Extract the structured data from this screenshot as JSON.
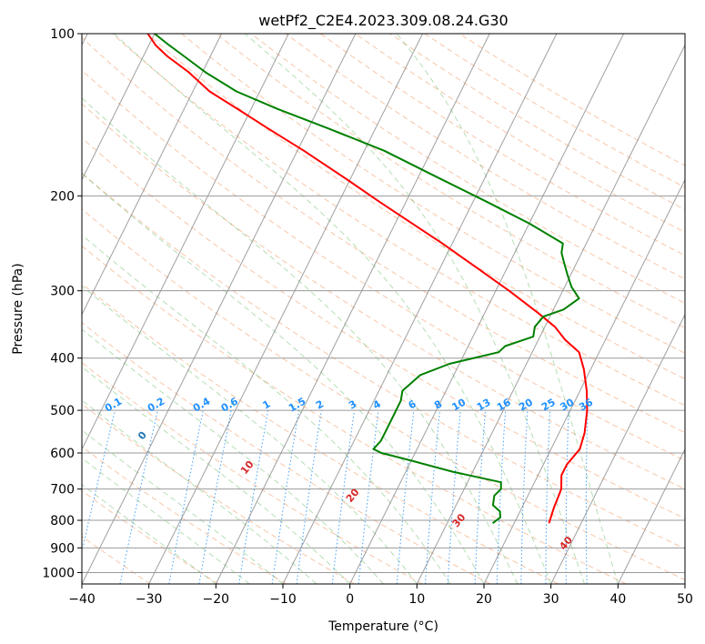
{
  "chart_data": {
    "type": "line",
    "title": "wetPf2_C2E4.2023.309.08.24.G30",
    "xlabel": "Temperature (°C)",
    "ylabel": "Pressure (hPa)",
    "xlim": [
      -40,
      50
    ],
    "ylim": [
      1050,
      100
    ],
    "yscale": "log",
    "x_ticks": [
      "-40",
      "-30",
      "-20",
      "-10",
      "0",
      "10",
      "20",
      "30",
      "40",
      "50"
    ],
    "y_ticks": [
      "100",
      "200",
      "300",
      "400",
      "500",
      "600",
      "700",
      "800",
      "900",
      "1000"
    ],
    "grid": true,
    "series": [
      {
        "color": "#ff0000",
        "pressure": [
          810,
          760,
          700,
          660,
          630,
          590,
          550,
          500,
          460,
          420,
          390,
          370,
          350,
          330,
          300,
          270,
          245,
          225,
          205,
          185,
          165,
          150,
          138,
          128,
          118,
          110,
          105,
          100
        ],
        "temperature": [
          25.2,
          24.8,
          24.5,
          23.5,
          23.5,
          24.3,
          23.8,
          22.5,
          21.0,
          19.0,
          17.0,
          14.0,
          11.5,
          8.0,
          2.0,
          -5.0,
          -11.5,
          -17.5,
          -24.0,
          -31.0,
          -39.0,
          -46.0,
          -52.0,
          -57.5,
          -62.0,
          -66.5,
          -69.0,
          -71.0
        ]
      },
      {
        "color": "#008000",
        "pressure": [
          810,
          790,
          770,
          750,
          720,
          700,
          680,
          650,
          620,
          600,
          590,
          570,
          540,
          510,
          480,
          460,
          430,
          410,
          390,
          380,
          365,
          350,
          335,
          325,
          310,
          295,
          280,
          265,
          255,
          245,
          225,
          205,
          185,
          165,
          150,
          138,
          128,
          118,
          110,
          105,
          100
        ],
        "temperature": [
          16.8,
          17.5,
          17.0,
          15.5,
          15.0,
          15.5,
          15.0,
          7.0,
          0.0,
          -5.0,
          -6.5,
          -6.0,
          -6.0,
          -6.0,
          -6.0,
          -6.5,
          -5.0,
          -1.5,
          5.0,
          5.5,
          9.0,
          8.5,
          9.0,
          11.5,
          13.0,
          11.0,
          9.5,
          8.0,
          7.0,
          6.5,
          0.0,
          -8.0,
          -17.0,
          -27.0,
          -37.0,
          -46.0,
          -53.5,
          -59.5,
          -64.0,
          -67.0,
          -70.0
        ]
      }
    ],
    "background": {
      "dry_adiabats_C": [
        "-100",
        "-90",
        "-80",
        "-70",
        "-60",
        "-50",
        "-40",
        "-30",
        "-20",
        "-10",
        "0",
        "10",
        "20",
        "30",
        "40"
      ],
      "mixing_ratios_gkg": [
        "0.1",
        "0.2",
        "0.4",
        "0.6",
        "1",
        "1.5",
        "2",
        "3",
        "4",
        "6",
        "8",
        "10",
        "13",
        "16",
        "20",
        "25",
        "30",
        "36"
      ],
      "dry_color": "#f08040",
      "moist_color": "#2ca02c",
      "mixing_color": "#1e90ff"
    }
  }
}
